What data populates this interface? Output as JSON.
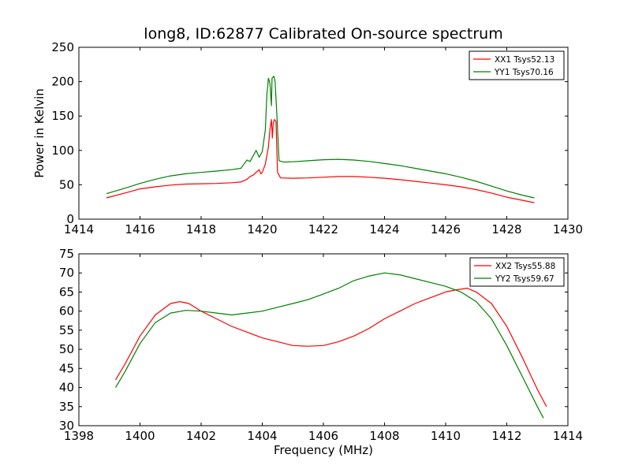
{
  "title": "long8, ID:62877 Calibrated On-source spectrum",
  "colors": {
    "xx": "#ff0000",
    "yy": "#008000",
    "axis": "#000000",
    "background": "#ffffff"
  },
  "chart_data": [
    {
      "type": "line",
      "title": "long8, ID:62877 Calibrated On-source spectrum",
      "xlabel": "",
      "ylabel": "Power in Kelvin",
      "xlim": [
        1414,
        1430
      ],
      "ylim": [
        0,
        250
      ],
      "xticks": [
        "1414",
        "1416",
        "1418",
        "1420",
        "1422",
        "1424",
        "1426",
        "1428",
        "1430"
      ],
      "yticks": [
        "0",
        "50",
        "100",
        "150",
        "200",
        "250"
      ],
      "grid": false,
      "legend_position": "top-right",
      "series": [
        {
          "name": "XX1 Tsys52.13",
          "color": "#ff0000",
          "points": [
            [
              1414.9,
              31
            ],
            [
              1415.5,
              38
            ],
            [
              1416.0,
              44
            ],
            [
              1416.5,
              47
            ],
            [
              1417.0,
              49.5
            ],
            [
              1417.5,
              51
            ],
            [
              1418.0,
              51.5
            ],
            [
              1418.5,
              52
            ],
            [
              1419.0,
              53
            ],
            [
              1419.3,
              54
            ],
            [
              1419.5,
              58
            ],
            [
              1419.6,
              62
            ],
            [
              1419.7,
              64
            ],
            [
              1419.8,
              68
            ],
            [
              1419.9,
              72
            ],
            [
              1419.95,
              66
            ],
            [
              1420.0,
              68
            ],
            [
              1420.1,
              80
            ],
            [
              1420.2,
              105
            ],
            [
              1420.25,
              130
            ],
            [
              1420.3,
              145
            ],
            [
              1420.33,
              118
            ],
            [
              1420.36,
              140
            ],
            [
              1420.4,
              145
            ],
            [
              1420.45,
              142
            ],
            [
              1420.5,
              68
            ],
            [
              1420.6,
              60
            ],
            [
              1421.0,
              59.5
            ],
            [
              1421.5,
              60
            ],
            [
              1422.0,
              61
            ],
            [
              1422.5,
              62
            ],
            [
              1423.0,
              62
            ],
            [
              1423.5,
              61
            ],
            [
              1424.0,
              59.5
            ],
            [
              1424.5,
              57.5
            ],
            [
              1425.0,
              55
            ],
            [
              1425.5,
              52.5
            ],
            [
              1426.0,
              50
            ],
            [
              1426.5,
              47
            ],
            [
              1427.0,
              43
            ],
            [
              1427.5,
              38
            ],
            [
              1428.0,
              32
            ],
            [
              1428.5,
              27.5
            ],
            [
              1428.9,
              24
            ]
          ]
        },
        {
          "name": "YY1 Tsys70.16",
          "color": "#008000",
          "points": [
            [
              1414.9,
              37
            ],
            [
              1415.5,
              45
            ],
            [
              1416.0,
              52
            ],
            [
              1416.5,
              58
            ],
            [
              1417.0,
              63
            ],
            [
              1417.5,
              66
            ],
            [
              1418.0,
              68
            ],
            [
              1418.5,
              70
            ],
            [
              1419.0,
              72
            ],
            [
              1419.3,
              74
            ],
            [
              1419.4,
              80
            ],
            [
              1419.5,
              86
            ],
            [
              1419.6,
              84
            ],
            [
              1419.7,
              92
            ],
            [
              1419.8,
              100
            ],
            [
              1419.9,
              90
            ],
            [
              1420.0,
              98
            ],
            [
              1420.1,
              130
            ],
            [
              1420.15,
              180
            ],
            [
              1420.2,
              205
            ],
            [
              1420.25,
              198
            ],
            [
              1420.3,
              165
            ],
            [
              1420.32,
              205
            ],
            [
              1420.38,
              208
            ],
            [
              1420.42,
              200
            ],
            [
              1420.48,
              150
            ],
            [
              1420.55,
              85
            ],
            [
              1420.7,
              83
            ],
            [
              1421.0,
              83.5
            ],
            [
              1421.5,
              85
            ],
            [
              1422.0,
              86.5
            ],
            [
              1422.5,
              87
            ],
            [
              1423.0,
              86
            ],
            [
              1423.5,
              84
            ],
            [
              1424.0,
              81
            ],
            [
              1424.5,
              78
            ],
            [
              1425.0,
              74
            ],
            [
              1425.5,
              70
            ],
            [
              1426.0,
              66
            ],
            [
              1426.5,
              61
            ],
            [
              1427.0,
              55
            ],
            [
              1427.5,
              48
            ],
            [
              1428.0,
              41
            ],
            [
              1428.5,
              35
            ],
            [
              1428.9,
              31
            ]
          ]
        }
      ]
    },
    {
      "type": "line",
      "title": "",
      "xlabel": "Frequency (MHz)",
      "ylabel": "",
      "xlim": [
        1398,
        1414
      ],
      "ylim": [
        30,
        75
      ],
      "xticks": [
        "1398",
        "1400",
        "1402",
        "1404",
        "1406",
        "1408",
        "1410",
        "1412",
        "1414"
      ],
      "yticks": [
        "30",
        "35",
        "40",
        "45",
        "50",
        "55",
        "60",
        "65",
        "70",
        "75"
      ],
      "grid": false,
      "legend_position": "top-right",
      "series": [
        {
          "name": "XX2 Tsys55.88",
          "color": "#ff0000",
          "points": [
            [
              1399.2,
              42
            ],
            [
              1399.5,
              46
            ],
            [
              1400.0,
              53.5
            ],
            [
              1400.5,
              59
            ],
            [
              1401.0,
              62
            ],
            [
              1401.3,
              62.5
            ],
            [
              1401.6,
              62
            ],
            [
              1402.0,
              60
            ],
            [
              1402.5,
              58
            ],
            [
              1403.0,
              56
            ],
            [
              1403.5,
              54.5
            ],
            [
              1404.0,
              53
            ],
            [
              1404.5,
              52
            ],
            [
              1405.0,
              51
            ],
            [
              1405.5,
              50.8
            ],
            [
              1406.0,
              51
            ],
            [
              1406.5,
              52
            ],
            [
              1407.0,
              53.5
            ],
            [
              1407.5,
              55.5
            ],
            [
              1408.0,
              58
            ],
            [
              1408.5,
              60
            ],
            [
              1409.0,
              62
            ],
            [
              1409.5,
              63.5
            ],
            [
              1410.0,
              65
            ],
            [
              1410.3,
              65.5
            ],
            [
              1410.7,
              66
            ],
            [
              1411.0,
              65
            ],
            [
              1411.5,
              62
            ],
            [
              1412.0,
              56
            ],
            [
              1412.5,
              48
            ],
            [
              1413.0,
              39.5
            ],
            [
              1413.3,
              35
            ]
          ]
        },
        {
          "name": "YY2 Tsys59.67",
          "color": "#008000",
          "points": [
            [
              1399.2,
              40
            ],
            [
              1399.5,
              44
            ],
            [
              1400.0,
              51.5
            ],
            [
              1400.5,
              57
            ],
            [
              1401.0,
              59.5
            ],
            [
              1401.5,
              60.2
            ],
            [
              1402.0,
              60
            ],
            [
              1402.5,
              59.5
            ],
            [
              1403.0,
              59
            ],
            [
              1403.5,
              59.5
            ],
            [
              1404.0,
              60
            ],
            [
              1404.5,
              61
            ],
            [
              1405.0,
              62
            ],
            [
              1405.5,
              63
            ],
            [
              1406.0,
              64.5
            ],
            [
              1406.5,
              66
            ],
            [
              1407.0,
              68
            ],
            [
              1407.5,
              69.2
            ],
            [
              1408.0,
              70
            ],
            [
              1408.5,
              69.5
            ],
            [
              1409.0,
              68.5
            ],
            [
              1409.5,
              67.5
            ],
            [
              1410.0,
              66.5
            ],
            [
              1410.5,
              65
            ],
            [
              1411.0,
              62.5
            ],
            [
              1411.5,
              58
            ],
            [
              1412.0,
              51
            ],
            [
              1412.5,
              43
            ],
            [
              1413.0,
              35
            ],
            [
              1413.2,
              32
            ]
          ]
        }
      ]
    }
  ]
}
